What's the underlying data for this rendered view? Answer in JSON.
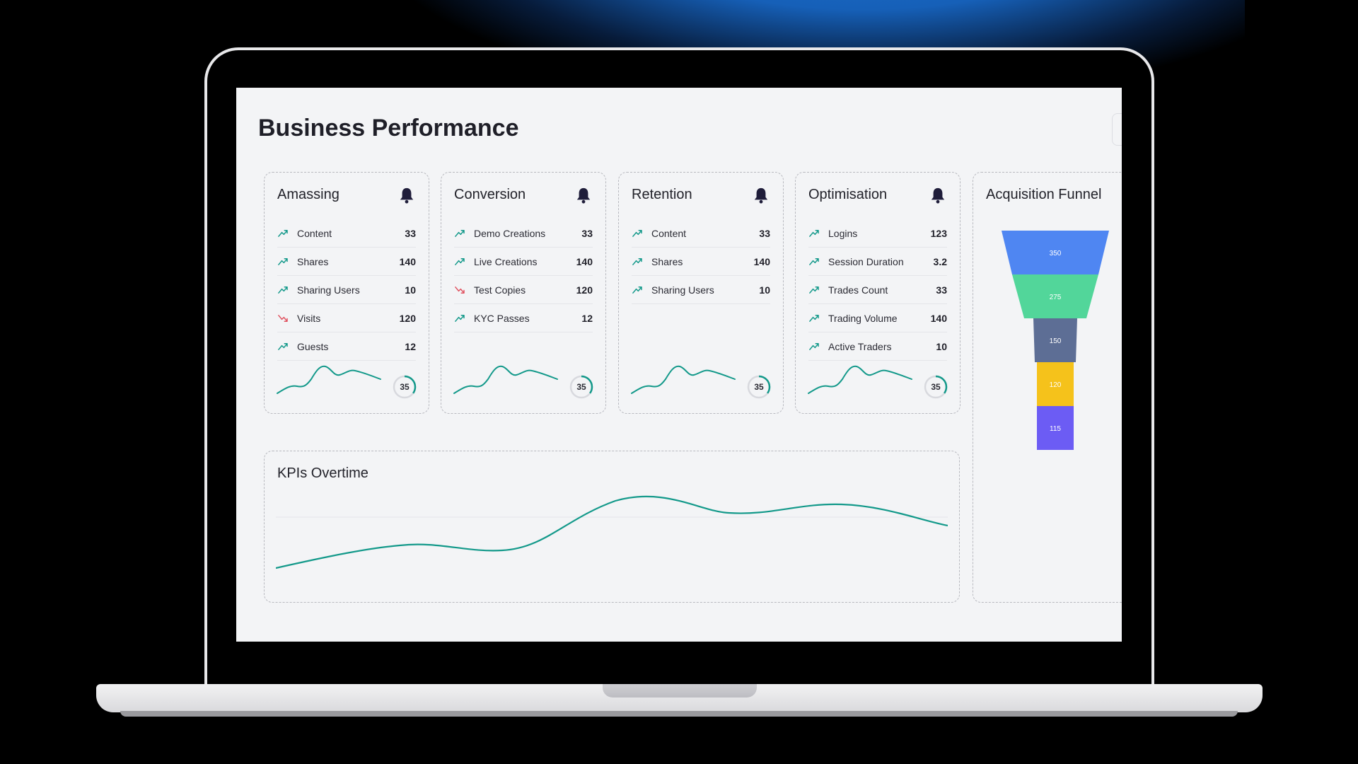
{
  "page_title": "Business Performance",
  "colors": {
    "accent": "#13998a",
    "trend_up": "#13998a",
    "trend_down": "#e05260",
    "bell": "#1f1d3a",
    "funnel": [
      "#4f86f2",
      "#52d69a",
      "#5d6e95",
      "#f5c21b",
      "#6c5cf4"
    ]
  },
  "cards": [
    {
      "title": "Amassing",
      "rows": [
        {
          "label": "Content",
          "value": "33",
          "trend": "up"
        },
        {
          "label": "Shares",
          "value": "140",
          "trend": "up"
        },
        {
          "label": "Sharing Users",
          "value": "10",
          "trend": "up"
        },
        {
          "label": "Visits",
          "value": "120",
          "trend": "down"
        },
        {
          "label": "Guests",
          "value": "12",
          "trend": "up"
        }
      ],
      "ring_value": "35",
      "ring_progress": 0.35
    },
    {
      "title": "Conversion",
      "rows": [
        {
          "label": "Demo Creations",
          "value": "33",
          "trend": "up"
        },
        {
          "label": "Live Creations",
          "value": "140",
          "trend": "up"
        },
        {
          "label": "Test Copies",
          "value": "120",
          "trend": "down"
        },
        {
          "label": "KYC Passes",
          "value": "12",
          "trend": "up"
        }
      ],
      "ring_value": "35",
      "ring_progress": 0.35
    },
    {
      "title": "Retention",
      "rows": [
        {
          "label": "Content",
          "value": "33",
          "trend": "up"
        },
        {
          "label": "Shares",
          "value": "140",
          "trend": "up"
        },
        {
          "label": "Sharing Users",
          "value": "10",
          "trend": "up"
        }
      ],
      "ring_value": "35",
      "ring_progress": 0.35
    },
    {
      "title": "Optimisation",
      "rows": [
        {
          "label": "Logins",
          "value": "123",
          "trend": "up"
        },
        {
          "label": "Session Duration",
          "value": "3.2",
          "trend": "up"
        },
        {
          "label": "Trades Count",
          "value": "33",
          "trend": "up"
        },
        {
          "label": "Trading Volume",
          "value": "140",
          "trend": "up"
        },
        {
          "label": "Active Traders",
          "value": "10",
          "trend": "up"
        }
      ],
      "ring_value": "35",
      "ring_progress": 0.35
    }
  ],
  "kpi": {
    "title": "KPIs Overtime"
  },
  "funnel": {
    "title": "Acquisition Funnel",
    "stages": [
      "350",
      "275",
      "150",
      "120",
      "115"
    ]
  }
}
